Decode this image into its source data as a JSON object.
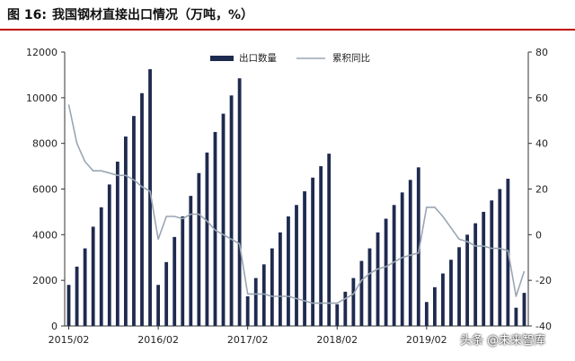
{
  "figure": {
    "label": "图 16:",
    "title": "我国钢材直接出口情况（万吨，%）"
  },
  "watermark": "头条 @未来智库",
  "colors": {
    "bar": "#1f2a4f",
    "line": "#9aa6b2",
    "rule": "#c00000"
  },
  "chart_data": {
    "type": "bar",
    "title": "我国钢材直接出口情况（万吨，%）",
    "xlabel": "",
    "ylabel": "",
    "y2label": "",
    "x_tick_labels": [
      "2015/02",
      "2016/02",
      "2017/02",
      "2018/02",
      "2019/02"
    ],
    "ylim": [
      0,
      12000
    ],
    "yticks": [
      0,
      2000,
      4000,
      6000,
      8000,
      10000,
      12000
    ],
    "y2lim": [
      -40,
      80
    ],
    "y2ticks": [
      -40,
      -20,
      0,
      20,
      40,
      60,
      80
    ],
    "legend": {
      "position": "top-center"
    },
    "grid": false,
    "categories": [
      "2015/02",
      "2015/03",
      "2015/04",
      "2015/05",
      "2015/06",
      "2015/07",
      "2015/08",
      "2015/09",
      "2015/10",
      "2015/11",
      "2015/12",
      "2016/02",
      "2016/03",
      "2016/04",
      "2016/05",
      "2016/06",
      "2016/07",
      "2016/08",
      "2016/09",
      "2016/10",
      "2016/11",
      "2016/12",
      "2017/02",
      "2017/03",
      "2017/04",
      "2017/05",
      "2017/06",
      "2017/07",
      "2017/08",
      "2017/09",
      "2017/10",
      "2017/11",
      "2017/12",
      "2018/02",
      "2018/03",
      "2018/04",
      "2018/05",
      "2018/06",
      "2018/07",
      "2018/08",
      "2018/09",
      "2018/10",
      "2018/11",
      "2018/12",
      "2019/02",
      "2019/03",
      "2019/04",
      "2019/05",
      "2019/06",
      "2019/07",
      "2019/08",
      "2019/09",
      "2019/10",
      "2019/11",
      "2019/12",
      "2020/02",
      "2020/03"
    ],
    "series": [
      {
        "name": "出口数量",
        "type": "bar",
        "axis": "left",
        "values": [
          1800,
          2600,
          3400,
          4350,
          5200,
          6200,
          7200,
          8300,
          9200,
          10200,
          11250,
          1800,
          2800,
          3900,
          4800,
          5700,
          6700,
          7600,
          8500,
          9300,
          10100,
          10850,
          1300,
          2100,
          2700,
          3400,
          4100,
          4800,
          5300,
          5900,
          6500,
          7000,
          7550,
          950,
          1500,
          2100,
          2850,
          3400,
          4100,
          4700,
          5300,
          5850,
          6400,
          6950,
          1050,
          1700,
          2300,
          2900,
          3450,
          4000,
          4500,
          5000,
          5500,
          6000,
          6450,
          800,
          1450
        ]
      },
      {
        "name": "累积同比",
        "type": "line",
        "axis": "right",
        "values": [
          57,
          40,
          32,
          28,
          28,
          27,
          26,
          26,
          24,
          21,
          19,
          -2,
          8,
          8,
          7,
          9,
          9,
          6,
          2,
          0,
          -2,
          -4,
          -26,
          -26,
          -26,
          -27,
          -27,
          -27,
          -28,
          -29,
          -30,
          -30,
          -30,
          -30,
          -28,
          -26,
          -20,
          -17,
          -15,
          -14,
          -12,
          -10,
          -9,
          -8,
          12,
          12,
          8,
          3,
          -2,
          -3,
          -5,
          -5,
          -6,
          -6,
          -7,
          -27,
          -16
        ]
      }
    ]
  }
}
